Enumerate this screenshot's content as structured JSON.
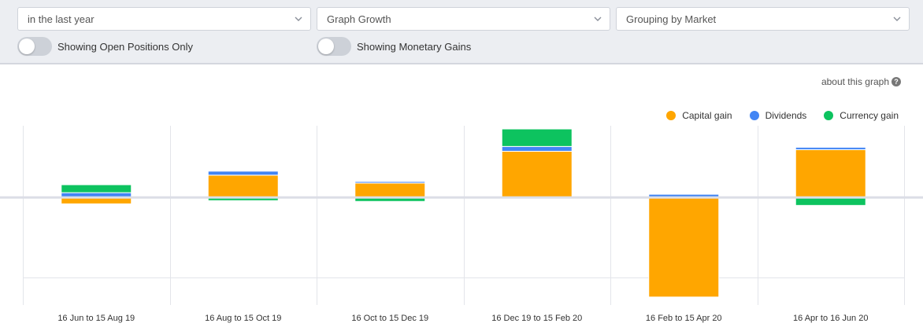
{
  "filters": {
    "period": "in the last year",
    "graph_type": "Graph Growth",
    "grouping": "Grouping by Market"
  },
  "toggles": {
    "open_positions": "Showing Open Positions Only",
    "monetary_gains": "Showing Monetary Gains"
  },
  "about_link": "about this graph",
  "colors": {
    "capital": "#ffa600",
    "dividends": "#4285f4",
    "currency": "#0dc35f"
  },
  "chart_data": {
    "type": "bar",
    "stacked": true,
    "categories": [
      "16 Jun to 15 Aug 19",
      "16 Aug to 15 Oct 19",
      "16 Oct to 15 Dec 19",
      "16 Dec 19 to 15 Feb 20",
      "16 Feb to 15 Apr 20",
      "16 Apr to 16 Jun 20"
    ],
    "series": [
      {
        "name": "Capital gain",
        "values": [
          -8,
          28,
          18,
          58,
          -125,
          60
        ]
      },
      {
        "name": "Dividends",
        "values": [
          6,
          5,
          2,
          6,
          4,
          3
        ]
      },
      {
        "name": "Currency gain",
        "values": [
          10,
          -4,
          -5,
          22,
          0,
          -10
        ]
      }
    ],
    "ylim": [
      -135,
      90
    ],
    "grid": true,
    "legend_position": "top-right"
  }
}
